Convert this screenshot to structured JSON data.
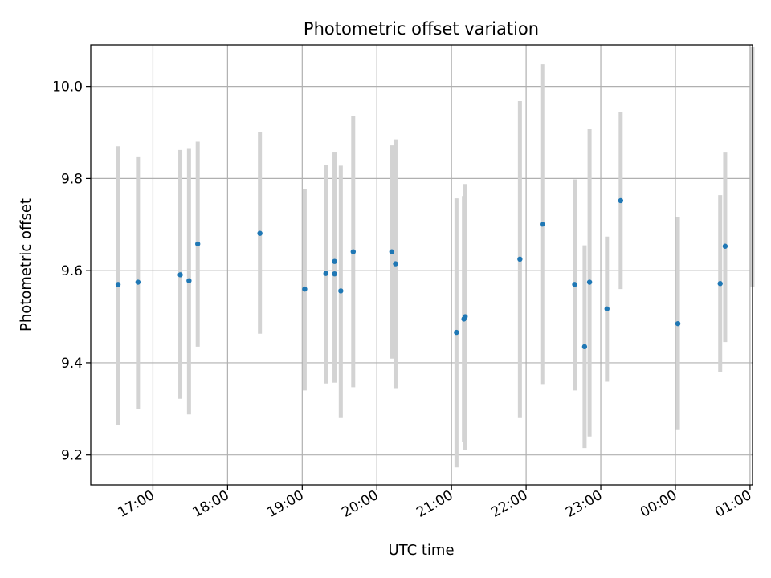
{
  "chart_data": {
    "type": "scatter",
    "title": "Photometric offset variation",
    "xlabel": "UTC time",
    "ylabel": "Photometric offset",
    "x_axis_kind": "time",
    "xlim": [
      "16:10",
      "01:02"
    ],
    "ylim": [
      9.135,
      10.09
    ],
    "xticks": [
      "17:00",
      "18:00",
      "19:00",
      "20:00",
      "21:00",
      "22:00",
      "23:00",
      "00:00",
      "01:00"
    ],
    "yticks": [
      "9.2",
      "9.4",
      "9.6",
      "9.8",
      "10.0"
    ],
    "grid": true,
    "colors": {
      "point": "#1f77b4",
      "error_bar": "#d3d3d3",
      "grid": "#b0b0b0"
    },
    "points": [
      {
        "time": "16:32",
        "y": 9.57,
        "ylo": 9.265,
        "yhi": 9.87
      },
      {
        "time": "16:48",
        "y": 9.575,
        "ylo": 9.3,
        "yhi": 9.848
      },
      {
        "time": "17:22",
        "y": 9.591,
        "ylo": 9.322,
        "yhi": 9.862
      },
      {
        "time": "17:29",
        "y": 9.578,
        "ylo": 9.288,
        "yhi": 9.866
      },
      {
        "time": "17:36",
        "y": 9.658,
        "ylo": 9.435,
        "yhi": 9.88
      },
      {
        "time": "18:26",
        "y": 9.681,
        "ylo": 9.463,
        "yhi": 9.9
      },
      {
        "time": "19:02",
        "y": 9.56,
        "ylo": 9.34,
        "yhi": 9.778
      },
      {
        "time": "19:19",
        "y": 9.594,
        "ylo": 9.355,
        "yhi": 9.83
      },
      {
        "time": "19:26",
        "y": 9.62,
        "ylo": 9.357,
        "yhi": 9.858
      },
      {
        "time": "19:26",
        "y": 9.593,
        "ylo": 9.357,
        "yhi": 9.858
      },
      {
        "time": "19:31",
        "y": 9.556,
        "ylo": 9.28,
        "yhi": 9.828
      },
      {
        "time": "19:41",
        "y": 9.641,
        "ylo": 9.347,
        "yhi": 9.935
      },
      {
        "time": "20:12",
        "y": 9.641,
        "ylo": 9.409,
        "yhi": 9.872
      },
      {
        "time": "20:15",
        "y": 9.615,
        "ylo": 9.345,
        "yhi": 9.885
      },
      {
        "time": "21:04",
        "y": 9.466,
        "ylo": 9.173,
        "yhi": 9.757
      },
      {
        "time": "21:10",
        "y": 9.495,
        "ylo": 9.228,
        "yhi": 9.762
      },
      {
        "time": "21:11",
        "y": 9.5,
        "ylo": 9.21,
        "yhi": 9.788
      },
      {
        "time": "21:55",
        "y": 9.625,
        "ylo": 9.28,
        "yhi": 9.968
      },
      {
        "time": "22:13",
        "y": 9.701,
        "ylo": 9.354,
        "yhi": 10.048
      },
      {
        "time": "22:39",
        "y": 9.57,
        "ylo": 9.34,
        "yhi": 9.798
      },
      {
        "time": "22:47",
        "y": 9.435,
        "ylo": 9.215,
        "yhi": 9.655
      },
      {
        "time": "22:51",
        "y": 9.575,
        "ylo": 9.24,
        "yhi": 9.907
      },
      {
        "time": "23:05",
        "y": 9.517,
        "ylo": 9.359,
        "yhi": 9.674
      },
      {
        "time": "23:16",
        "y": 9.752,
        "ylo": 9.56,
        "yhi": 9.944
      },
      {
        "time": "00:02",
        "y": 9.485,
        "ylo": 9.254,
        "yhi": 9.717
      },
      {
        "time": "00:36",
        "y": 9.572,
        "ylo": 9.38,
        "yhi": 9.764
      },
      {
        "time": "00:40",
        "y": 9.653,
        "ylo": 9.445,
        "yhi": 9.858
      },
      {
        "time": "01:02",
        "y": null,
        "ylo": 9.565,
        "yhi": 10.085
      }
    ]
  }
}
